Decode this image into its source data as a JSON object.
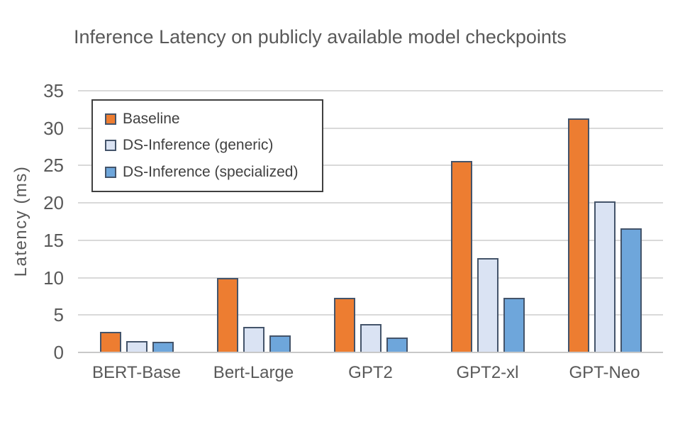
{
  "chart_data": {
    "type": "bar",
    "title": "Inference Latency on publicly available model checkpoints",
    "xlabel": "",
    "ylabel": "Latency (ms)",
    "categories": [
      "BERT-Base",
      "Bert-Large",
      "GPT2",
      "GPT2-xl",
      "GPT-Neo"
    ],
    "series": [
      {
        "name": "Baseline",
        "color": "#ED7D31",
        "values": [
          2.7,
          9.9,
          7.2,
          25.5,
          31.2
        ]
      },
      {
        "name": "DS-Inference (generic)",
        "color": "#DAE3F3",
        "values": [
          1.4,
          3.3,
          3.7,
          12.5,
          20.1
        ]
      },
      {
        "name": "DS-Inference (specialized)",
        "color": "#6EA6DB",
        "values": [
          1.3,
          2.2,
          1.9,
          7.2,
          16.5
        ]
      }
    ],
    "ylim": [
      0,
      35
    ],
    "yticks": [
      0,
      5,
      10,
      15,
      20,
      25,
      30,
      35
    ],
    "grid": true,
    "legend_position": "upper-left-inside",
    "colors": {
      "bar_border": "#44546A",
      "gridline": "#D9D9D9",
      "axis_line": "#C8C8C8",
      "text": "#595959",
      "legend_text": "#404040",
      "legend_border": "#404040",
      "background": "#FFFFFF"
    }
  }
}
